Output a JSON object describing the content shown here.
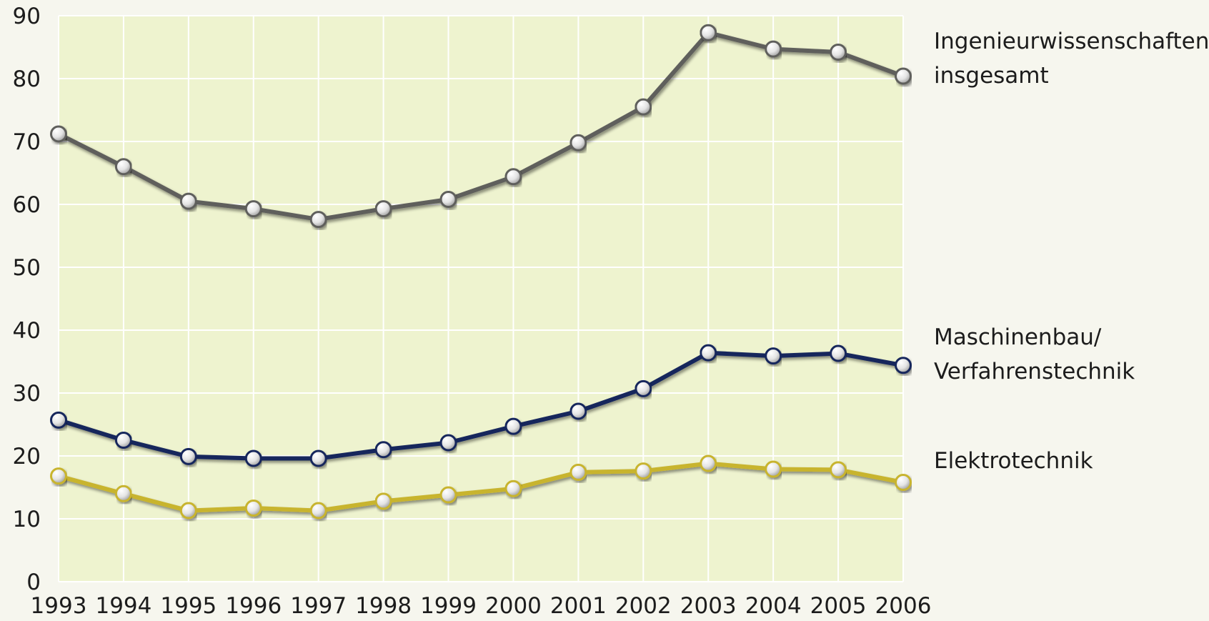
{
  "chart_data": {
    "type": "line",
    "title": "",
    "xlabel": "",
    "ylabel": "",
    "x": [
      1993,
      1994,
      1995,
      1996,
      1997,
      1998,
      1999,
      2000,
      2001,
      2002,
      2003,
      2004,
      2005,
      2006
    ],
    "x_tick_labels": [
      "1993",
      "1994",
      "1995",
      "1996",
      "1997",
      "1998",
      "1999",
      "2000",
      "2001",
      "2002",
      "2003",
      "2004",
      "2005",
      "2006"
    ],
    "ylim": [
      0,
      90
    ],
    "y_ticks": [
      0,
      10,
      20,
      30,
      40,
      50,
      60,
      70,
      80,
      90
    ],
    "y_tick_labels": [
      "0",
      "10",
      "20",
      "30",
      "40",
      "50",
      "60",
      "70",
      "80",
      "90"
    ],
    "grid": true,
    "legend": "direct labels at right end of lines",
    "plot_background": "#eef3cf",
    "series": [
      {
        "label_lines": [
          "Ingenieurwissenschaften",
          "insgesamt"
        ],
        "color": "#5f5f5c",
        "values": [
          71.2,
          66.0,
          60.5,
          59.3,
          57.6,
          59.3,
          60.8,
          64.4,
          69.8,
          75.5,
          87.3,
          84.7,
          84.2,
          80.4
        ]
      },
      {
        "label_lines": [
          "Maschinenbau/",
          "Verfahrenstechnik"
        ],
        "color": "#16285c",
        "values": [
          25.7,
          22.5,
          19.9,
          19.6,
          19.6,
          21.0,
          22.1,
          24.7,
          27.1,
          30.7,
          36.4,
          35.9,
          36.3,
          34.4
        ]
      },
      {
        "label_lines": [
          "Elektrotechnik"
        ],
        "color": "#c8b42e",
        "values": [
          16.8,
          14.0,
          11.3,
          11.7,
          11.3,
          12.8,
          13.8,
          14.8,
          17.4,
          17.6,
          18.8,
          17.9,
          17.8,
          15.8
        ]
      }
    ]
  }
}
